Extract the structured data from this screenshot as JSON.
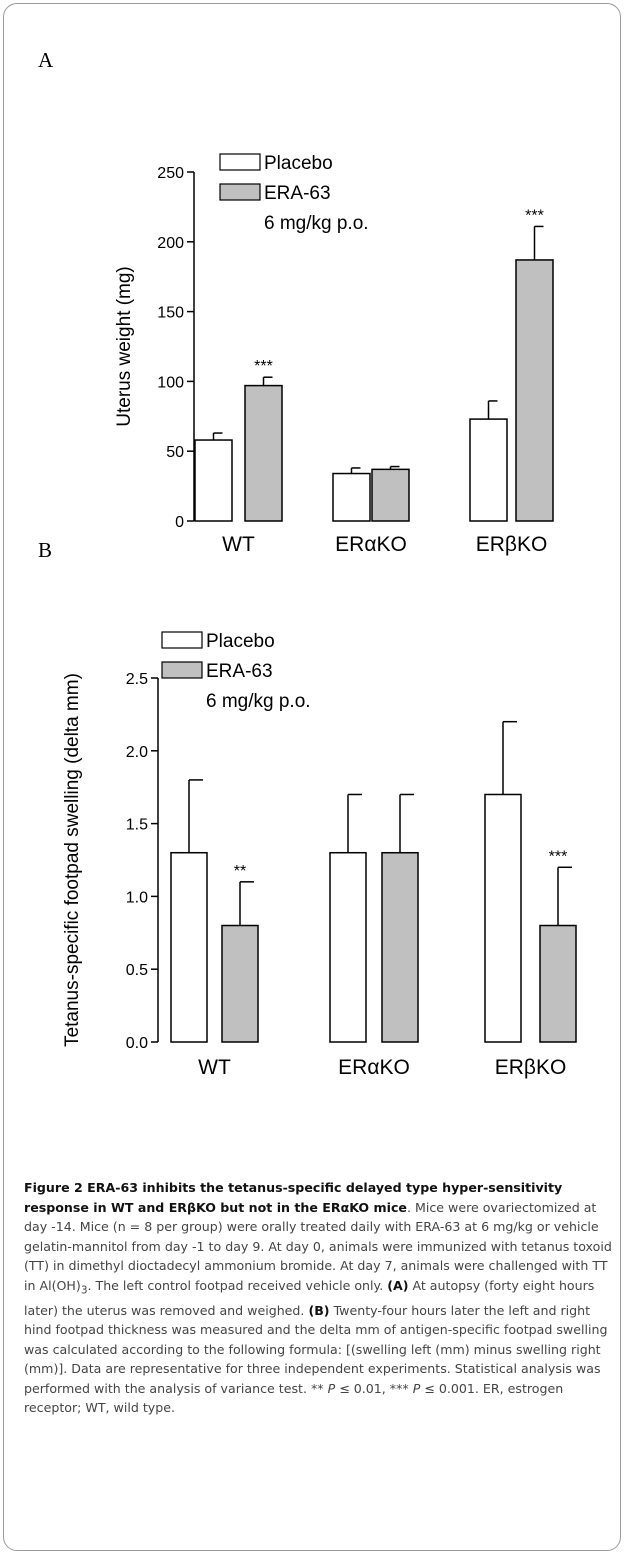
{
  "panel_a_letter": "A",
  "panel_b_letter": "B",
  "chart_data": [
    {
      "type": "bar",
      "categories": [
        "WT",
        "ERαKO",
        "ERβKO"
      ],
      "ylabel": "Uterus weight (mg)",
      "ylim": [
        0,
        250
      ],
      "yticks": [
        0,
        50,
        100,
        150,
        200,
        250
      ],
      "legend_position": "top-left",
      "series": [
        {
          "name": "Placebo",
          "color": "#ffffff",
          "values": [
            58,
            34,
            73
          ],
          "errors": [
            5,
            4,
            13
          ],
          "sig": [
            "",
            "",
            ""
          ]
        },
        {
          "name": "ERA-63\n6 mg/kg p.o.",
          "color": "#c0c0c0",
          "values": [
            97,
            37,
            187
          ],
          "errors": [
            6,
            2,
            24
          ],
          "sig": [
            "***",
            "",
            "***"
          ]
        }
      ]
    },
    {
      "type": "bar",
      "categories": [
        "WT",
        "ERαKO",
        "ERβKO"
      ],
      "ylabel": "Tetanus-specific footpad swelling (delta mm)",
      "ylim": [
        0,
        2.5
      ],
      "yticks": [
        "0.0",
        "0.5",
        "1.0",
        "1.5",
        "2.0",
        "2.5"
      ],
      "legend_position": "top-left",
      "series": [
        {
          "name": "Placebo",
          "color": "#ffffff",
          "values": [
            1.3,
            1.3,
            1.7
          ],
          "errors": [
            0.5,
            0.4,
            0.5
          ],
          "sig": [
            "",
            "",
            ""
          ]
        },
        {
          "name": "ERA-63\n6 mg/kg p.o.",
          "color": "#c0c0c0",
          "values": [
            0.8,
            1.3,
            0.8
          ],
          "errors": [
            0.3,
            0.4,
            0.4
          ],
          "sig": [
            "**",
            "",
            "***"
          ]
        }
      ]
    }
  ],
  "caption": {
    "title": "Figure 2 ERA-63 inhibits the tetanus-specific delayed type hyper-sensitivity response in WT and ERβKO but not in the ERαKO mice",
    "text_1": ". Mice were ovariectomized at day -14. Mice (n = 8 per group) were orally treated daily with ERA-63 at 6 mg/kg or vehicle gelatin-mannitol from day -1 to day 9. At day 0, animals were immunized with tetanus toxoid (TT) in dimethyl dioctadecyl ammonium bromide. At day 7, animals were challenged with TT in Al(OH)",
    "sub_3": "3",
    "text_2": ". The left control footpad received vehicle only. ",
    "label_a": "(A)",
    "text_3": " At autopsy (forty eight hours later) the uterus was removed and weighed. ",
    "label_b": "(B)",
    "text_4": " Twenty-four hours later the left and right hind footpad thickness was measured and the delta mm of antigen-specific footpad swelling was calculated according to the following formula: [(swelling left (mm) minus swelling right (mm)]. Data are representative for three independent experiments. Statistical analysis was performed with the analysis of variance test. ** ",
    "p1": "P",
    "text_5": " ≤ 0.01, *** ",
    "p2": "P",
    "text_6": " ≤ 0.001. ER, estrogen receptor; WT, wild type."
  }
}
